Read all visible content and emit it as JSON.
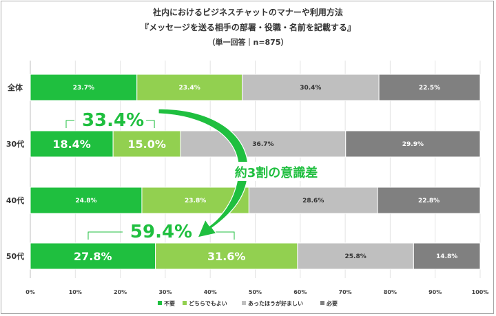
{
  "header": {
    "title_line1": "社内におけるビジネスチャットのマナーや利用方法",
    "title_line2": "『メッセージを送る相手の部署・役職・名前を記載する』",
    "title_line3": "（単一回答｜n=875）"
  },
  "colors": {
    "s1": "#1fbf3f",
    "s2": "#92d050",
    "s3": "#bfbfbf",
    "s4": "#808080",
    "highlight": "#1fbf3f"
  },
  "chart_data": {
    "type": "bar",
    "orientation": "horizontal",
    "stacked": true,
    "categories": [
      "全体",
      "30代",
      "40代",
      "50代"
    ],
    "series": [
      {
        "name": "不要",
        "values": [
          23.7,
          18.4,
          24.8,
          27.8
        ],
        "labels": [
          "23.7%",
          "18.4%",
          "24.8%",
          "27.8%"
        ]
      },
      {
        "name": "どちらでもよい",
        "values": [
          23.4,
          15.0,
          23.8,
          31.6
        ],
        "labels": [
          "23.4%",
          "15.0%",
          "23.8%",
          "31.6%"
        ]
      },
      {
        "name": "あったほうが好ましい",
        "values": [
          30.4,
          36.7,
          28.6,
          25.8
        ],
        "labels": [
          "30.4%",
          "36.7%",
          "28.6%",
          "25.8%"
        ]
      },
      {
        "name": "必要",
        "values": [
          22.5,
          29.9,
          22.8,
          14.8
        ],
        "labels": [
          "22.5%",
          "29.9%",
          "22.8%",
          "14.8%"
        ]
      }
    ],
    "xlim": [
      0,
      100
    ],
    "xticks": [
      "0%",
      "10%",
      "20%",
      "30%",
      "40%",
      "50%",
      "60%",
      "70%",
      "80%",
      "90%",
      "100%"
    ],
    "legend_position": "bottom",
    "annotations": {
      "callout_30s": "33.4%",
      "callout_50s": "59.4%",
      "arrow_text": "約3割の意識差"
    }
  }
}
